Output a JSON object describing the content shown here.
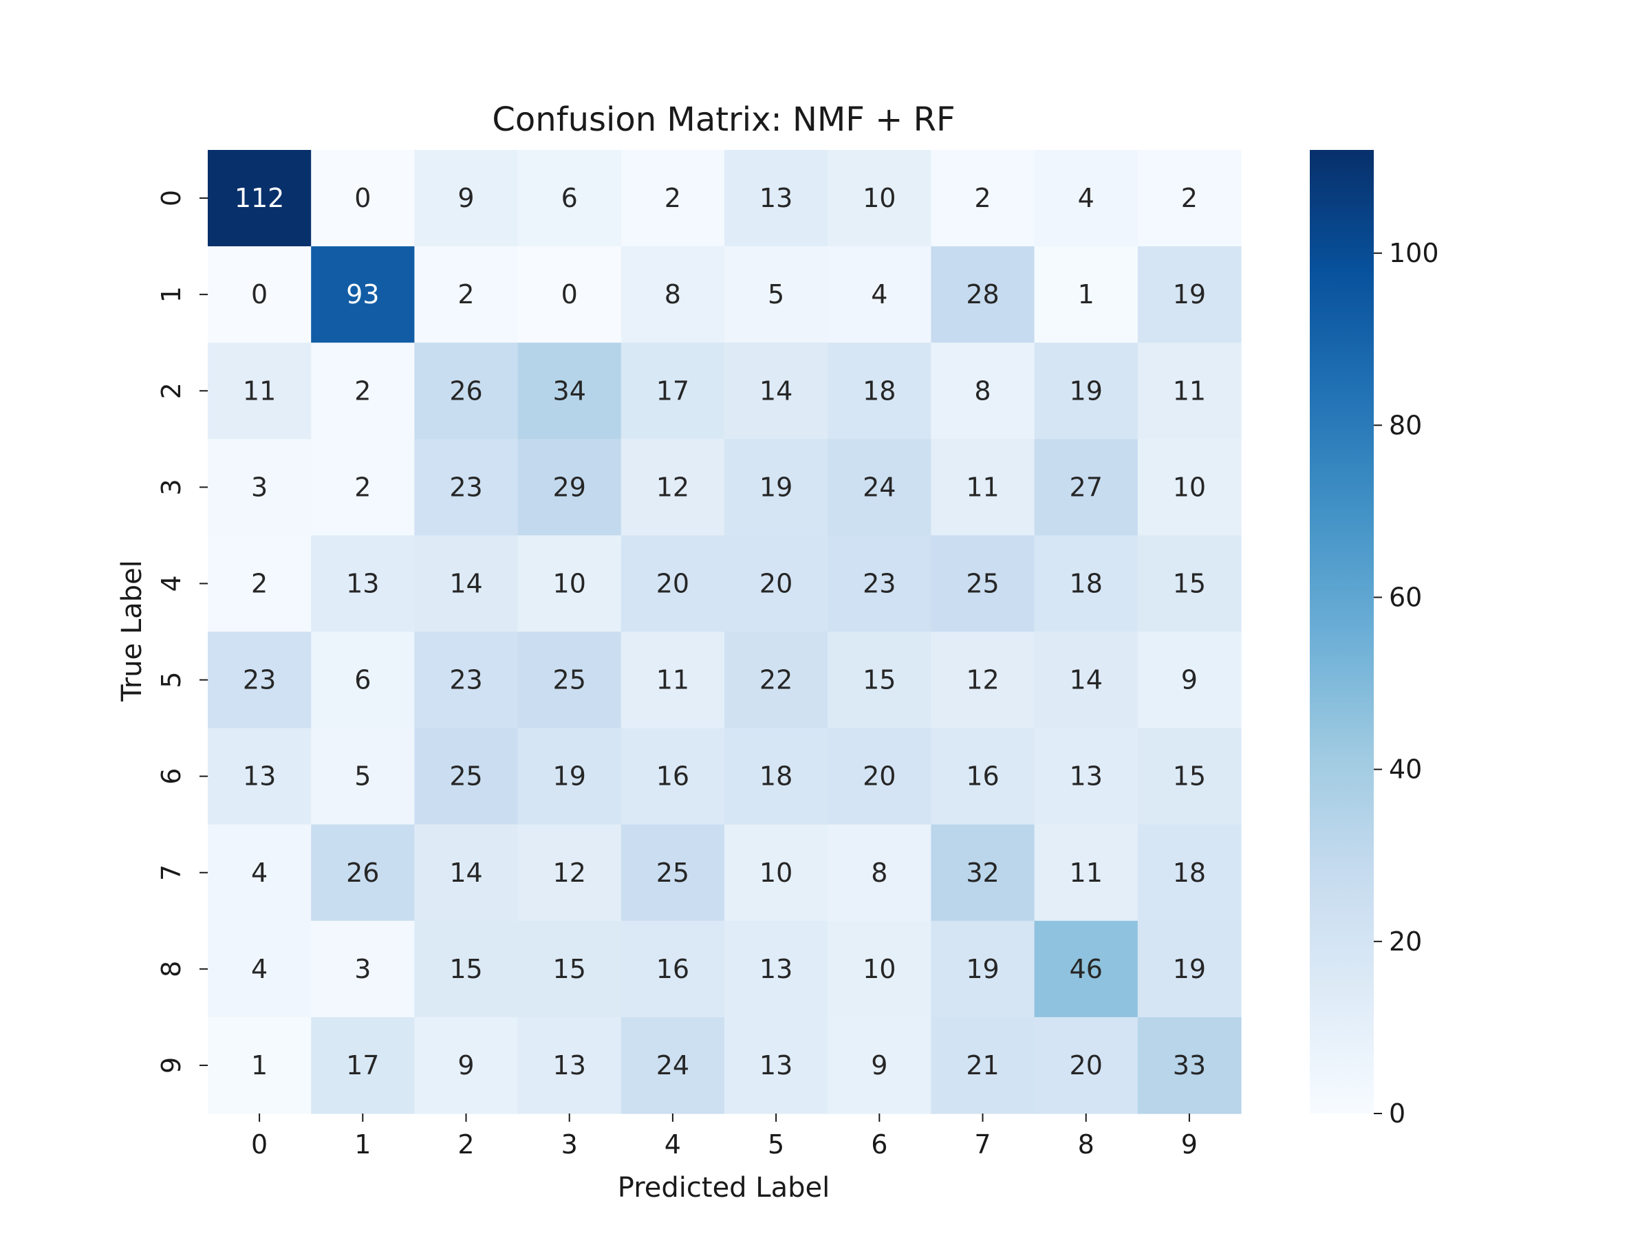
{
  "chart_data": {
    "type": "heatmap",
    "title": "Confusion Matrix: NMF + RF",
    "xlabel": "Predicted Label",
    "ylabel": "True Label",
    "x_categories": [
      "0",
      "1",
      "2",
      "3",
      "4",
      "5",
      "6",
      "7",
      "8",
      "9"
    ],
    "y_categories": [
      "0",
      "1",
      "2",
      "3",
      "4",
      "5",
      "6",
      "7",
      "8",
      "9"
    ],
    "values": [
      [
        112,
        0,
        9,
        6,
        2,
        13,
        10,
        2,
        4,
        2
      ],
      [
        0,
        93,
        2,
        0,
        8,
        5,
        4,
        28,
        1,
        19
      ],
      [
        11,
        2,
        26,
        34,
        17,
        14,
        18,
        8,
        19,
        11
      ],
      [
        3,
        2,
        23,
        29,
        12,
        19,
        24,
        11,
        27,
        10
      ],
      [
        2,
        13,
        14,
        10,
        20,
        20,
        23,
        25,
        18,
        15
      ],
      [
        23,
        6,
        23,
        25,
        11,
        22,
        15,
        12,
        14,
        9
      ],
      [
        13,
        5,
        25,
        19,
        16,
        18,
        20,
        16,
        13,
        15
      ],
      [
        4,
        26,
        14,
        12,
        25,
        10,
        8,
        32,
        11,
        18
      ],
      [
        4,
        3,
        15,
        15,
        16,
        13,
        10,
        19,
        46,
        19
      ],
      [
        1,
        17,
        9,
        13,
        24,
        13,
        9,
        21,
        20,
        33
      ]
    ],
    "colormap": "Blues",
    "value_range": [
      0,
      112
    ],
    "colorbar_ticks": [
      "0",
      "20",
      "40",
      "60",
      "80",
      "100"
    ],
    "colorbar_tick_values": [
      0,
      20,
      40,
      60,
      80,
      100
    ],
    "grid": false,
    "legend": "colorbar-right"
  }
}
